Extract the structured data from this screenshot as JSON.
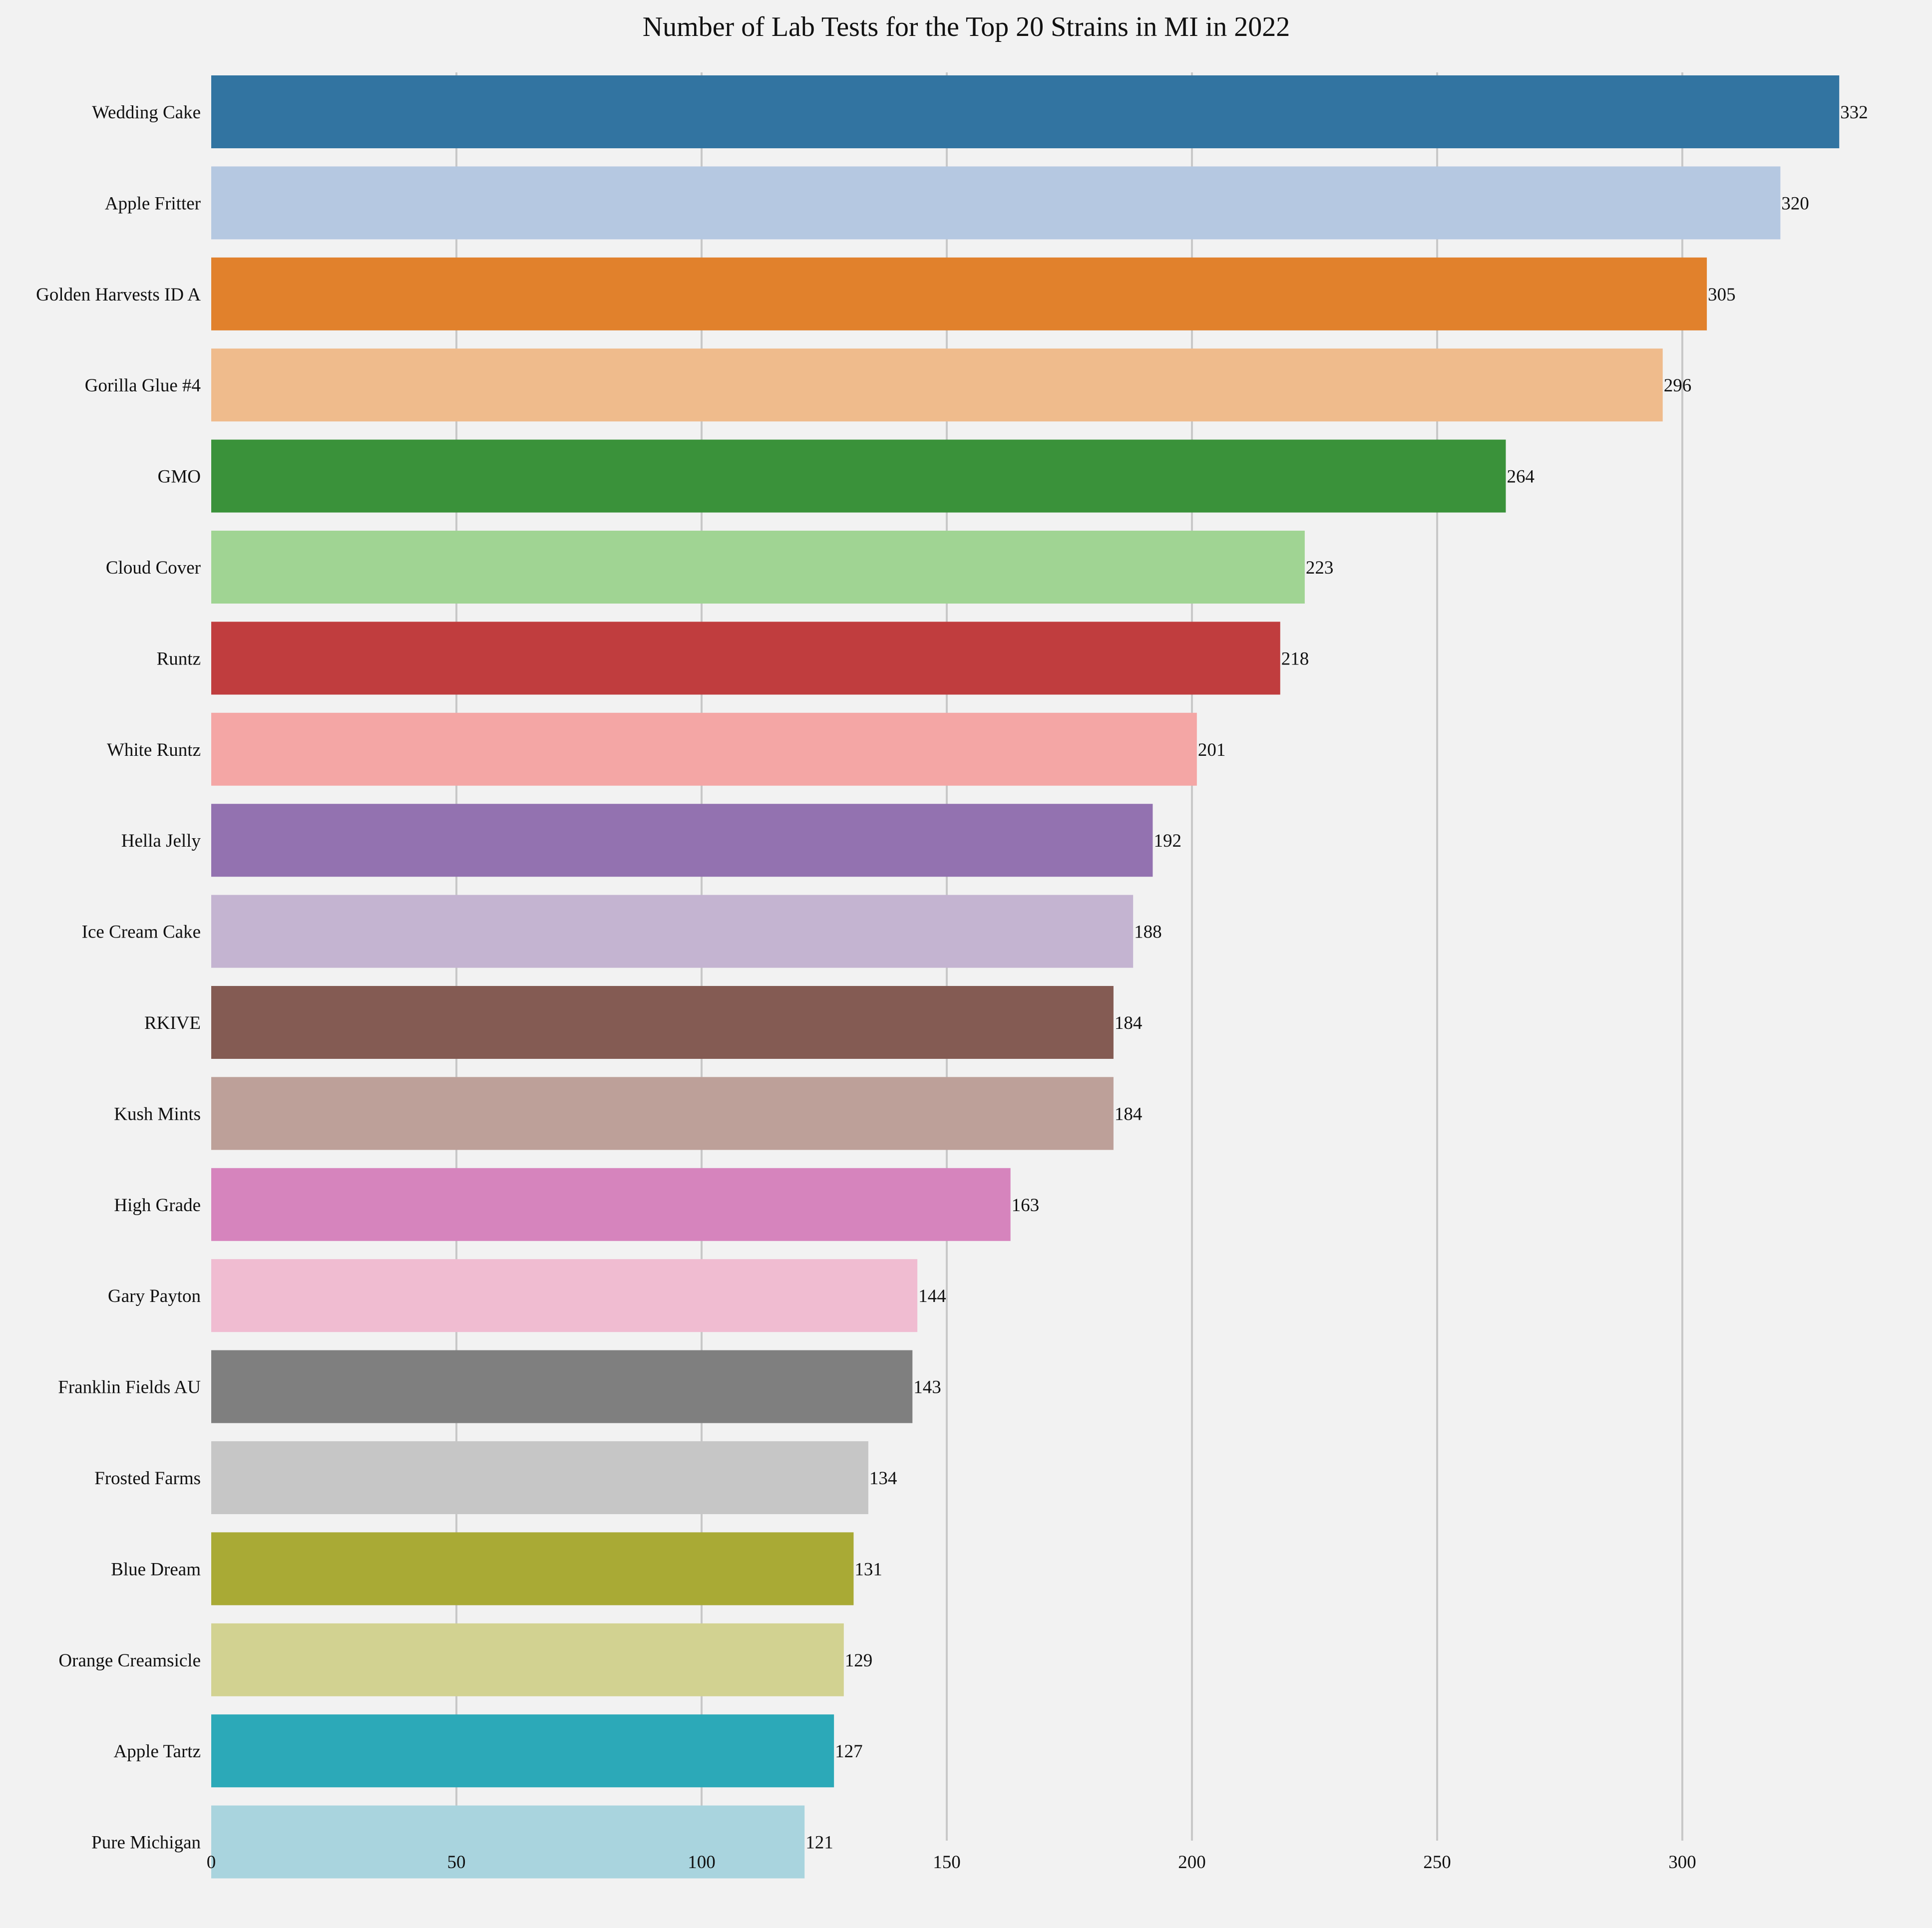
{
  "chart_data": {
    "type": "bar",
    "orientation": "horizontal",
    "title": "Number of Lab Tests for the Top 20 Strains in MI in 2022",
    "xlabel": "",
    "ylabel": "",
    "xlim": [
      0,
      340
    ],
    "xticks": [
      0,
      50,
      100,
      150,
      200,
      250,
      300
    ],
    "grid": "vertical",
    "categories": [
      "Wedding Cake",
      "Apple Fritter",
      "Golden Harvests ID A",
      "Gorilla Glue #4",
      "GMO",
      "Cloud Cover",
      "Runtz",
      "White Runtz",
      "Hella Jelly",
      "Ice Cream Cake",
      "RKIVE",
      "Kush Mints",
      "High Grade",
      "Gary Payton",
      "Franklin Fields AU",
      "Frosted Farms",
      "Blue Dream",
      "Orange Creamsicle",
      "Apple Tartz",
      "Pure Michigan"
    ],
    "values": [
      332,
      320,
      305,
      296,
      264,
      223,
      218,
      201,
      192,
      188,
      184,
      184,
      163,
      144,
      143,
      134,
      131,
      129,
      127,
      121
    ],
    "colors": [
      "#3274a1",
      "#b5c8e1",
      "#e1812c",
      "#efbb8c",
      "#3a923a",
      "#a0d493",
      "#c03d3e",
      "#f4a6a5",
      "#9372b0",
      "#c4b4d1",
      "#845b53",
      "#bda099",
      "#d684bd",
      "#f0bcd1",
      "#7f7f7f",
      "#c6c6c6",
      "#a9aa35",
      "#d2d291",
      "#2ca9b8",
      "#a9d4de"
    ]
  }
}
